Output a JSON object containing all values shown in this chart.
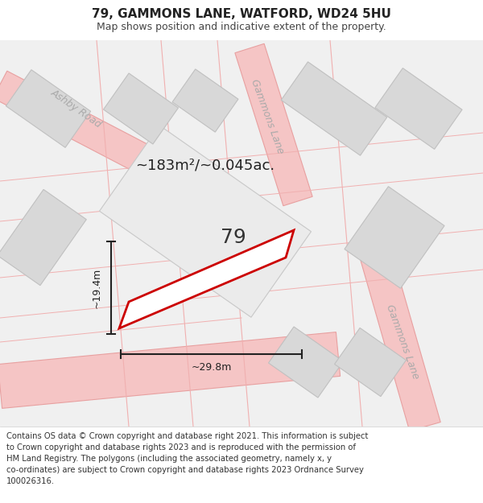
{
  "title": "79, GAMMONS LANE, WATFORD, WD24 5HU",
  "subtitle": "Map shows position and indicative extent of the property.",
  "footer_lines": [
    "Contains OS data © Crown copyright and database right 2021. This information is subject",
    "to Crown copyright and database rights 2023 and is reproduced with the permission of",
    "HM Land Registry. The polygons (including the associated geometry, namely x, y",
    "co-ordinates) are subject to Crown copyright and database rights 2023 Ordnance Survey",
    "100026316."
  ],
  "area_label": "~183m²/~0.045ac.",
  "width_label": "~29.8m",
  "height_label": "~19.4m",
  "plot_number": "79",
  "map_bg": "#f0f0f0",
  "road_color": "#f5c5c5",
  "road_outline": "#e8a0a0",
  "grey_block": "#d8d8d8",
  "plot_edge_color": "#cc0000",
  "plot_fill_color": "#ffffff",
  "title_fontsize": 11,
  "subtitle_fontsize": 9,
  "footer_fontsize": 7.2,
  "road_label_color": "#aaaaaa",
  "dim_color": "#222222"
}
